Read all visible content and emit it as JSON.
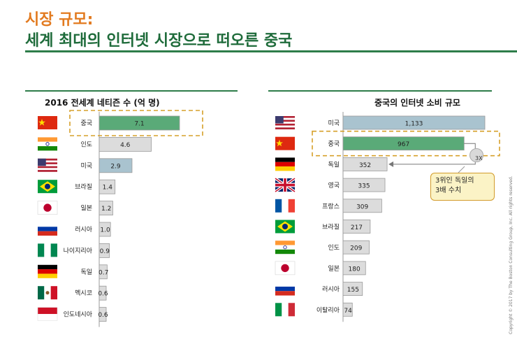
{
  "header": {
    "title_line1": "시장 규모:",
    "title_line2": "세계 최대의 인터넷 시장으로 떠오른 중국"
  },
  "copyright": "Copyright © 2017 by The Boston Consulting Group, Inc. All rights reserved.",
  "callout": {
    "text": "3위인  독일의\n3배  수치",
    "multiplier": "3X"
  },
  "colors": {
    "highlight": "#5aaa78",
    "us": "#a9c3cf",
    "default": "#dcdcdc",
    "title_orange": "#e27a1f",
    "title_green": "#1e6b3a",
    "dashed": "#d6a02a"
  },
  "chart_data": [
    {
      "type": "bar",
      "title": "2016 전세계 네티즌 수 (억 명)",
      "categories": [
        "중국",
        "인도",
        "미국",
        "브라질",
        "일본",
        "러시아",
        "나이지리아",
        "독일",
        "멕시코",
        "인도네시아"
      ],
      "flags": [
        "china-flag-icon",
        "india-flag-icon",
        "usa-flag-icon",
        "brazil-flag-icon",
        "japan-flag-icon",
        "russia-flag-icon",
        "nigeria-flag-icon",
        "germany-flag-icon",
        "mexico-flag-icon",
        "indonesia-flag-icon"
      ],
      "values": [
        7.1,
        4.6,
        2.9,
        1.4,
        1.2,
        1.0,
        0.9,
        0.7,
        0.6,
        0.6
      ],
      "labels": [
        "7.1",
        "4.6",
        "2.9",
        "1.4",
        "1.2",
        "1.0",
        "0.9",
        "0.7",
        "0.6",
        "0.6"
      ],
      "highlight": "중국",
      "xlim": [
        0,
        7.1
      ]
    },
    {
      "type": "bar",
      "title": "중국의 인터넷 소비 규모",
      "categories": [
        "미국",
        "중국",
        "독일",
        "영국",
        "프랑스",
        "브라질",
        "인도",
        "일본",
        "러시아",
        "이탈리아"
      ],
      "flags": [
        "usa-flag-icon",
        "china-flag-icon",
        "germany-flag-icon",
        "uk-flag-icon",
        "france-flag-icon",
        "brazil-flag-icon",
        "india-flag-icon",
        "japan-flag-icon",
        "russia-flag-icon",
        "italy-flag-icon"
      ],
      "values": [
        1133,
        967,
        352,
        335,
        309,
        217,
        209,
        180,
        155,
        74
      ],
      "labels": [
        "1,133",
        "967",
        "352",
        "335",
        "309",
        "217",
        "209",
        "180",
        "155",
        "74"
      ],
      "highlight": "중국",
      "xlim": [
        0,
        1133
      ]
    }
  ]
}
